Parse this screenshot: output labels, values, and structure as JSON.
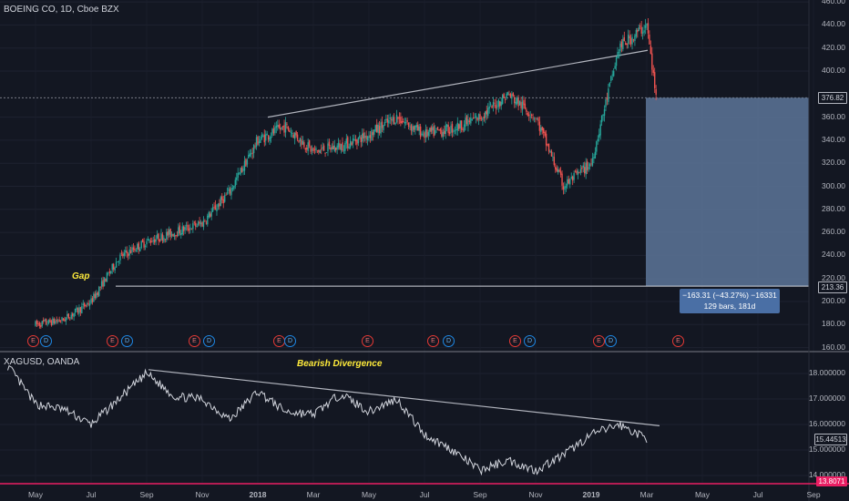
{
  "header": {
    "title": "BOEING CO, 1D, Cboe BZX",
    "sub_title": "XAGUSD, OANDA",
    "gap_label": "Gap",
    "divergence_label": "Bearish Divergence"
  },
  "price_axis": {
    "labels": [
      "460.00",
      "440.00",
      "420.00",
      "400.00",
      "360.00",
      "340.00",
      "320.00",
      "300.00",
      "280.00",
      "260.00",
      "240.00",
      "220.00",
      "200.00",
      "180.00",
      "160.00"
    ],
    "current_tag": "376.82",
    "gap_tag": "213.36"
  },
  "sub_axis": {
    "labels": [
      "18.000000",
      "17.000000",
      "16.000000",
      "15.000000",
      "14.000000"
    ],
    "current_tag": "15.44513",
    "bottom_tag": "13.8071"
  },
  "time_axis": {
    "labels": [
      "May",
      "Jul",
      "Sep",
      "Nov",
      "2018",
      "Mar",
      "May",
      "Jul",
      "Sep",
      "Nov",
      "2019",
      "Mar",
      "May",
      "Jul",
      "Sep"
    ]
  },
  "measure": {
    "line1": "−163.31 (−43.27%) −16331",
    "line2": "129 bars, 181d"
  },
  "events": {
    "e_letter": "E",
    "d_letter": "D"
  },
  "colors": {
    "background": "#131722",
    "up": "#26a69a",
    "down": "#ef5350",
    "line": "#d1d4dc",
    "measure_box": "#5d7599",
    "accent_pink": "#e91e63"
  },
  "chart_data": [
    {
      "type": "candlestick",
      "title": "BOEING CO, 1D, Cboe BZX",
      "ylabel": "",
      "ylim": [
        160,
        460
      ],
      "x_ticks": [
        "May",
        "Jul",
        "Sep",
        "Nov",
        "2018",
        "Mar",
        "May",
        "Jul",
        "Sep",
        "Nov",
        "2019",
        "Mar",
        "May",
        "Jul",
        "Sep"
      ],
      "key_levels": {
        "trendline_start": 360,
        "trendline_end": 418,
        "current": 376.82,
        "gap_level": 213.36
      },
      "price_path": [
        {
          "x": "2017-05",
          "y": 180
        },
        {
          "x": "2017-06",
          "y": 184
        },
        {
          "x": "2017-07",
          "y": 200
        },
        {
          "x": "2017-08",
          "y": 238
        },
        {
          "x": "2017-09",
          "y": 252
        },
        {
          "x": "2017-10",
          "y": 260
        },
        {
          "x": "2017-11",
          "y": 268
        },
        {
          "x": "2017-12",
          "y": 296
        },
        {
          "x": "2018-01",
          "y": 340
        },
        {
          "x": "2018-02",
          "y": 352
        },
        {
          "x": "2018-03",
          "y": 330
        },
        {
          "x": "2018-04",
          "y": 335
        },
        {
          "x": "2018-05",
          "y": 345
        },
        {
          "x": "2018-06",
          "y": 360
        },
        {
          "x": "2018-07",
          "y": 345
        },
        {
          "x": "2018-08",
          "y": 350
        },
        {
          "x": "2018-09",
          "y": 360
        },
        {
          "x": "2018-10",
          "y": 380
        },
        {
          "x": "2018-11",
          "y": 360
        },
        {
          "x": "2018-12",
          "y": 300
        },
        {
          "x": "2019-01",
          "y": 320
        },
        {
          "x": "2019-02",
          "y": 420
        },
        {
          "x": "2019-03",
          "y": 440
        },
        {
          "x": "2019-03-11",
          "y": 376.82
        }
      ],
      "measure": {
        "change": -163.31,
        "percent": -43.27,
        "bars": 129,
        "days": 181
      }
    },
    {
      "type": "line",
      "title": "XAGUSD, OANDA",
      "ylim": [
        13.8,
        18.8
      ],
      "y_ticks": [
        18,
        17,
        16,
        15,
        14
      ],
      "series": [
        {
          "name": "XAGUSD, OANDA",
          "points": [
            {
              "x": "2017-04",
              "y": 18.3
            },
            {
              "x": "2017-05",
              "y": 16.8
            },
            {
              "x": "2017-06",
              "y": 16.6
            },
            {
              "x": "2017-07",
              "y": 16.0
            },
            {
              "x": "2017-08",
              "y": 17.0
            },
            {
              "x": "2017-09",
              "y": 18.0
            },
            {
              "x": "2017-10",
              "y": 17.1
            },
            {
              "x": "2017-11",
              "y": 17.0
            },
            {
              "x": "2017-12",
              "y": 16.2
            },
            {
              "x": "2018-01",
              "y": 17.3
            },
            {
              "x": "2018-02",
              "y": 16.5
            },
            {
              "x": "2018-03",
              "y": 16.4
            },
            {
              "x": "2018-04",
              "y": 17.2
            },
            {
              "x": "2018-05",
              "y": 16.5
            },
            {
              "x": "2018-06",
              "y": 17.0
            },
            {
              "x": "2018-07",
              "y": 15.6
            },
            {
              "x": "2018-08",
              "y": 15.0
            },
            {
              "x": "2018-09",
              "y": 14.2
            },
            {
              "x": "2018-10",
              "y": 14.6
            },
            {
              "x": "2018-11",
              "y": 14.2
            },
            {
              "x": "2018-12",
              "y": 14.8
            },
            {
              "x": "2019-01",
              "y": 15.6
            },
            {
              "x": "2019-02",
              "y": 16.0
            },
            {
              "x": "2019-03",
              "y": 15.44513
            }
          ]
        }
      ]
    }
  ]
}
